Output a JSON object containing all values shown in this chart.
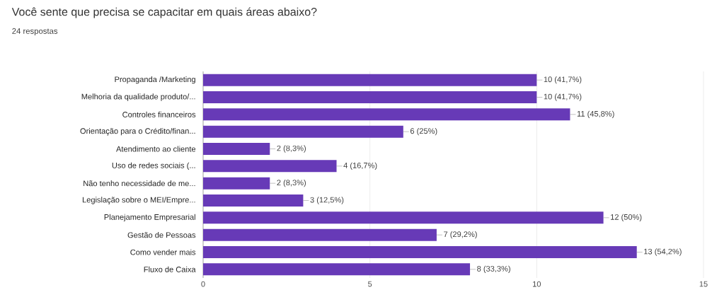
{
  "chart_data": {
    "type": "bar",
    "orientation": "horizontal",
    "title": "Você sente que precisa se capacitar em quais áreas abaixo?",
    "subtitle": "24 respostas",
    "categories": [
      "Propaganda /Marketing",
      "Melhoria da qualidade produto/...",
      "Controles financeiros",
      "Orientação para o Crédito/finan...",
      "Atendimento ao cliente",
      "Uso de redes sociais (...",
      "Não tenho necessidade de me...",
      "Legislação sobre o MEI/Empre...",
      "Planejamento Empresarial",
      "Gestão de Pessoas",
      "Como vender mais",
      "Fluxo de Caixa"
    ],
    "values": [
      10,
      10,
      11,
      6,
      2,
      4,
      2,
      3,
      12,
      7,
      13,
      8
    ],
    "value_labels": [
      "10 (41,7%)",
      "10 (41,7%)",
      "11 (45,8%)",
      "6 (25%)",
      "2 (8,3%)",
      "4 (16,7%)",
      "2 (8,3%)",
      "3 (12,5%)",
      "12 (50%)",
      "7 (29,2%)",
      "13 (54,2%)",
      "8 (33,3%)"
    ],
    "color": "#673ab7",
    "xlim": [
      0,
      15
    ],
    "xticks": [
      0,
      5,
      10,
      15
    ],
    "grid": "x"
  }
}
